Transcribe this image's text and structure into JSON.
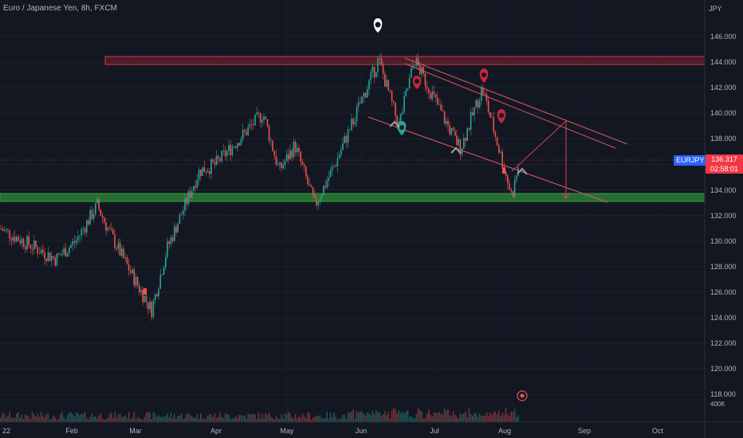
{
  "header": {
    "title": "Euro / Japanese Yen, 8h, FXCM"
  },
  "axis": {
    "unit": "JPY",
    "y_ticks": [
      "146.000",
      "144.000",
      "142.000",
      "140.000",
      "138.000",
      "136.000",
      "134.000",
      "132.000",
      "130.000",
      "128.000",
      "126.000",
      "124.000",
      "122.000",
      "120.000",
      "118.000"
    ],
    "x_ticks": [
      "22",
      "Feb",
      "Mar",
      "Apr",
      "May",
      "Jun",
      "Jul",
      "Aug",
      "Sep",
      "Oct"
    ],
    "volume_label": "400K"
  },
  "last_price": {
    "symbol": "EURJPY",
    "price": "136.317",
    "countdown": "02:58:01"
  },
  "colors": {
    "up": "#26a69a",
    "down": "#ef5350",
    "zone_red": "#b22833",
    "zone_green": "#2e8b35",
    "background": "#131722",
    "marker_teal": "#26a69a",
    "marker_red": "#c2273a",
    "marker_white": "#ffffff"
  },
  "chart_data": {
    "type": "candlestick",
    "ylim": [
      116.5,
      148.5
    ],
    "x_ticks": [
      "22",
      "Feb",
      "Mar",
      "Apr",
      "May",
      "Jun",
      "Jul",
      "Aug",
      "Sep",
      "Oct"
    ],
    "price_path": [
      {
        "x": "Jan",
        "y": 131.0
      },
      {
        "x": "mid-Jan",
        "y": 128.6
      },
      {
        "x": "late-Jan",
        "y": 130.0
      },
      {
        "x": "Feb",
        "y": 132.8
      },
      {
        "x": "early-Feb",
        "y": 131.0
      },
      {
        "x": "late-Feb",
        "y": 128.0
      },
      {
        "x": "Mar",
        "y": 124.6
      },
      {
        "x": "mid-Mar",
        "y": 129.5
      },
      {
        "x": "Apr",
        "y": 135.5
      },
      {
        "x": "mid-Apr",
        "y": 136.0
      },
      {
        "x": "late-Apr",
        "y": 140.0
      },
      {
        "x": "late-Apr",
        "y": 135.5
      },
      {
        "x": "May",
        "y": 137.5
      },
      {
        "x": "mid-May",
        "y": 132.8
      },
      {
        "x": "late-May",
        "y": 136.0
      },
      {
        "x": "Jun",
        "y": 144.2
      },
      {
        "x": "mid-Jun",
        "y": 139.0
      },
      {
        "x": "late-Jun",
        "y": 144.2
      },
      {
        "x": "Jul",
        "y": 138.0
      },
      {
        "x": "mid-Jul",
        "y": 137.3
      },
      {
        "x": "late-Jul",
        "y": 142.0
      },
      {
        "x": "Aug",
        "y": 133.5
      },
      {
        "x": "Aug",
        "y": 136.3
      }
    ],
    "zones": [
      {
        "name": "resistance",
        "from": 143.8,
        "to": 144.4
      },
      {
        "name": "support",
        "from": 133.0,
        "to": 133.6
      }
    ],
    "last": 136.317
  }
}
